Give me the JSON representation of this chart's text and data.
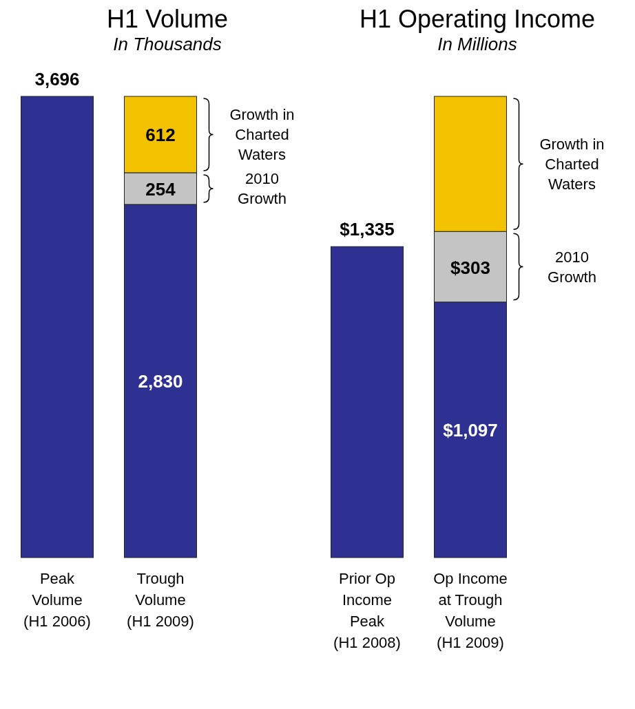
{
  "chart_data": [
    {
      "type": "bar",
      "title": "H1 Volume",
      "subtitle": "In Thousands",
      "stacked": true,
      "categories": [
        "Peak Volume (H1 2006)",
        "Trough Volume (H1 2009)"
      ],
      "series": [
        {
          "color": "#2e3192",
          "values": [
            3696,
            2830
          ],
          "value_labels": [
            "3,696",
            "2,830"
          ]
        },
        {
          "name": "2010 Growth",
          "color": "#c4c4c4",
          "values": [
            null,
            254
          ],
          "value_labels": [
            null,
            "254"
          ]
        },
        {
          "name": "Growth in Charted Waters",
          "color": "#f2c200",
          "values": [
            null,
            612
          ],
          "value_labels": [
            null,
            "612"
          ]
        }
      ]
    },
    {
      "type": "bar",
      "title": "H1 Operating Income",
      "subtitle": "In Millions",
      "stacked": true,
      "categories": [
        "Prior Op Income Peak (H1 2008)",
        "Op Income at Trough Volume (H1 2009)"
      ],
      "series": [
        {
          "color": "#2e3192",
          "values": [
            1335,
            1097
          ],
          "value_labels": [
            "$1,335",
            "$1,097"
          ]
        },
        {
          "name": "2010 Growth",
          "color": "#c4c4c4",
          "values": [
            null,
            303
          ],
          "value_labels": [
            null,
            "$303"
          ]
        },
        {
          "name": "Growth in Charted Waters",
          "color": "#f2c200",
          "values": [
            null,
            580
          ],
          "value_labels": [
            null,
            null
          ]
        }
      ]
    }
  ]
}
